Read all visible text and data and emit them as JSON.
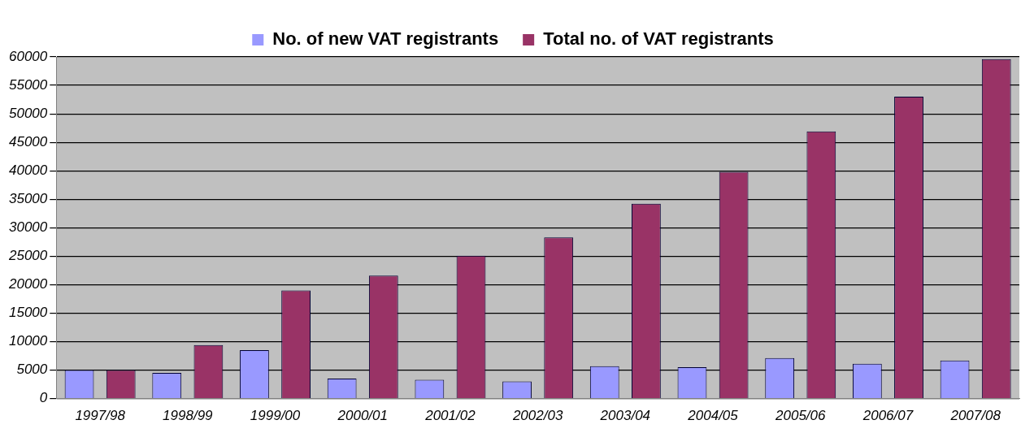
{
  "chart_data": {
    "type": "bar",
    "categories": [
      "1997/98",
      "1998/99",
      "1999/00",
      "2000/01",
      "2001/02",
      "2002/03",
      "2003/04",
      "2004/05",
      "2005/06",
      "2006/07",
      "2007/08"
    ],
    "series": [
      {
        "name": "No. of new VAT registrants",
        "color": "#9999ff",
        "values": [
          5000,
          4500,
          8500,
          3500,
          3300,
          3000,
          5700,
          5500,
          7100,
          6100,
          6700
        ]
      },
      {
        "name": "Total no. of VAT registrants",
        "color": "#993366",
        "values": [
          5000,
          9400,
          19000,
          21600,
          25100,
          28300,
          34200,
          39800,
          46900,
          53000,
          59600
        ]
      }
    ],
    "ylim": [
      0,
      60000
    ],
    "yticks": [
      0,
      5000,
      10000,
      15000,
      20000,
      25000,
      30000,
      35000,
      40000,
      45000,
      50000,
      55000,
      60000
    ],
    "grid": "y",
    "legend": "top"
  }
}
